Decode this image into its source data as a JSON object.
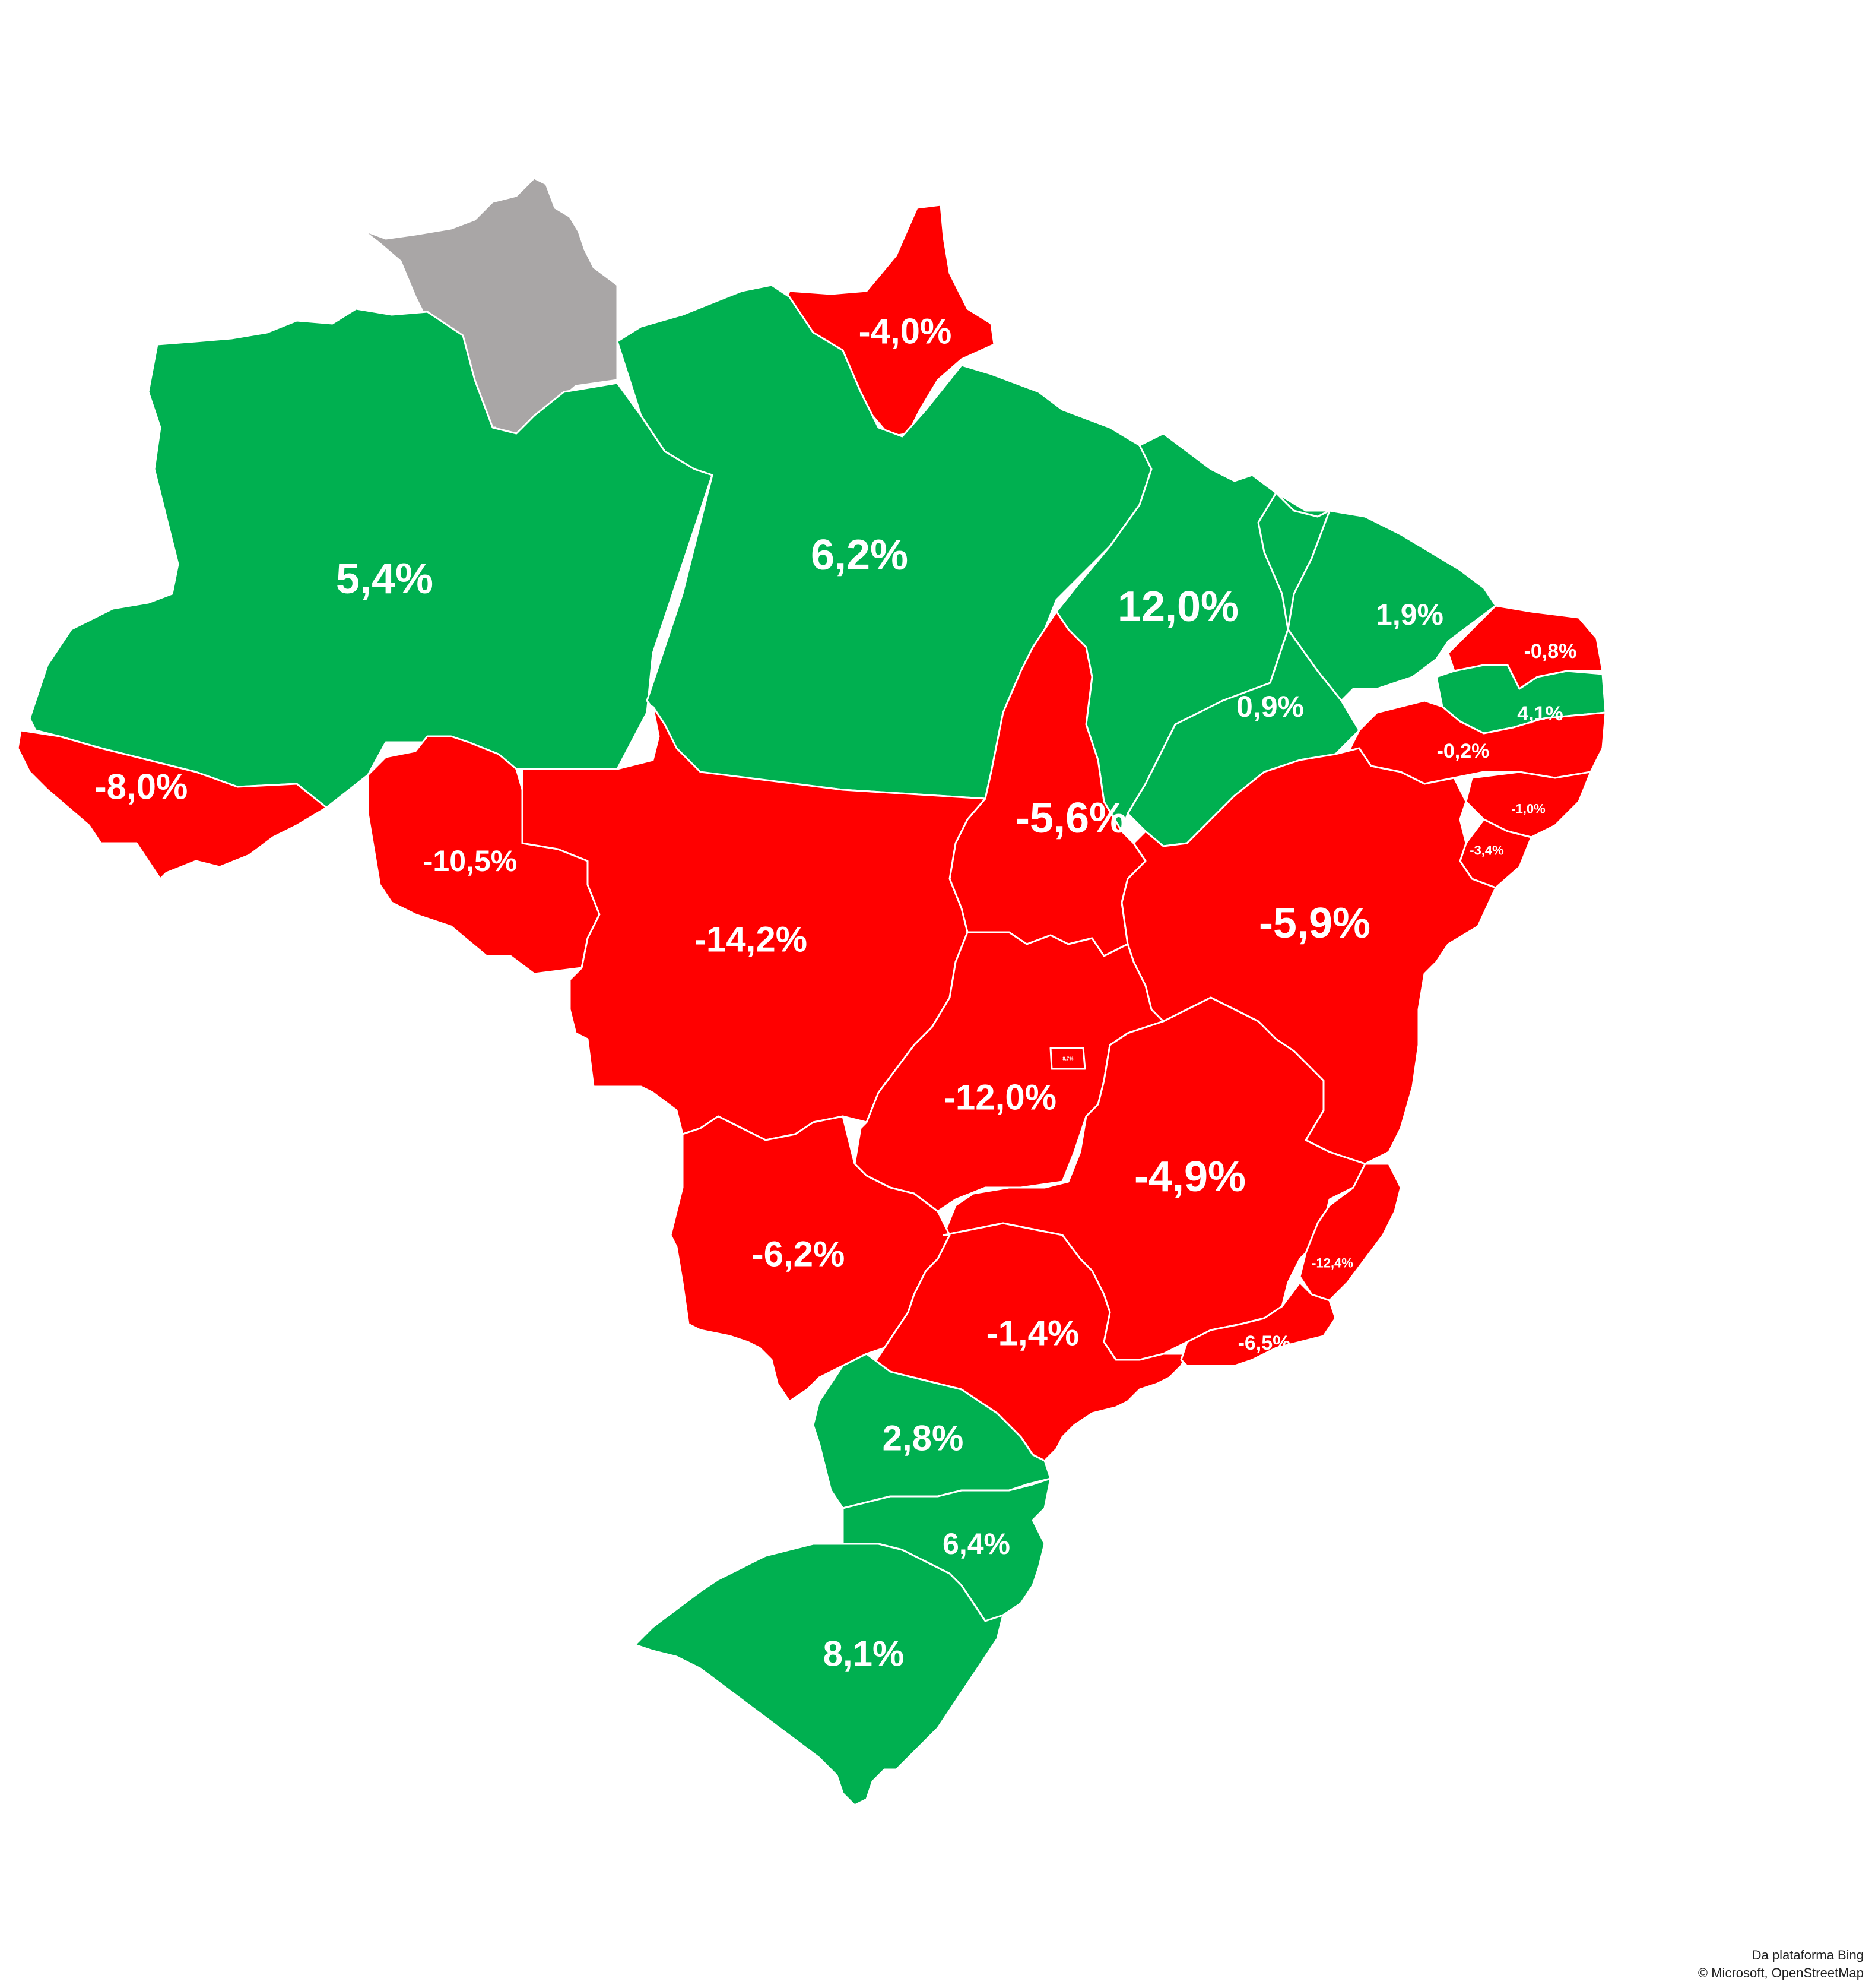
{
  "colors": {
    "positive": "#00b050",
    "negative": "#ff0000",
    "no_data": "#a9a6a6"
  },
  "states": {
    "rr": {
      "value": ""
    },
    "ap": {
      "value": "-4,0%"
    },
    "am": {
      "value": "5,4%"
    },
    "pa": {
      "value": "6,2%"
    },
    "ma": {
      "value": "12,0%"
    },
    "ce": {
      "value": "1,9%"
    },
    "rn": {
      "value": "-0,8%"
    },
    "pi": {
      "value": "0,9%"
    },
    "pb": {
      "value": "4,1%"
    },
    "pe": {
      "value": "-0,2%"
    },
    "al": {
      "value": "-1,0%"
    },
    "se": {
      "value": "-3,4%"
    },
    "ac": {
      "value": "-8,0%"
    },
    "ro": {
      "value": "-10,5%"
    },
    "to": {
      "value": "-5,6%"
    },
    "ba": {
      "value": "-5,9%"
    },
    "mt": {
      "value": "-14,2%"
    },
    "go": {
      "value": "-12,0%"
    },
    "df": {
      "value": "-8,7%"
    },
    "mg": {
      "value": "-4,9%"
    },
    "ms": {
      "value": "-6,2%"
    },
    "es": {
      "value": "-12,4%"
    },
    "sp": {
      "value": "-1,4%"
    },
    "rj": {
      "value": "-6,5%"
    },
    "pr": {
      "value": "2,8%"
    },
    "sc": {
      "value": "6,4%"
    },
    "rs": {
      "value": "8,1%"
    }
  },
  "attribution": {
    "line1": "Da plataforma Bing",
    "line2": "© Microsoft, OpenStreetMap"
  }
}
